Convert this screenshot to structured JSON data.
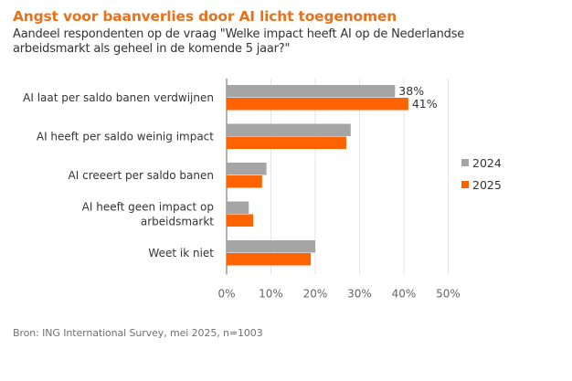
{
  "header": {
    "title": "Angst voor baanverlies door AI licht toegenomen",
    "subtitle": "Aandeel respondenten op de vraag \"Welke impact heeft AI op de Nederlandse arbeidsmarkt als geheel in de komende 5 jaar?\""
  },
  "footer": {
    "source": "Bron: ING International Survey, mei 2025, n=1003"
  },
  "colors": {
    "title": "#e8711c",
    "series_2024": "#a5a5a5",
    "series_2025": "#ff6200",
    "grid": "#e6e6e6",
    "axis": "#999999"
  },
  "chart_data": {
    "type": "bar",
    "orientation": "horizontal",
    "title": "Angst voor baanverlies door AI licht toegenomen",
    "subtitle": "Aandeel respondenten op de vraag \"Welke impact heeft AI op de Nederlandse arbeidsmarkt als geheel in de komende 5 jaar?\"",
    "categories": [
      [
        "AI laat per saldo banen verdwijnen"
      ],
      [
        "AI heeft per saldo weinig impact"
      ],
      [
        "AI creeert per saldo banen"
      ],
      [
        "AI heeft geen impact op",
        "arbeidsmarkt"
      ],
      [
        "Weet ik niet"
      ]
    ],
    "series": [
      {
        "name": "2024",
        "color": "#a5a5a5",
        "values": [
          38,
          28,
          9,
          5,
          20
        ]
      },
      {
        "name": "2025",
        "color": "#ff6200",
        "values": [
          41,
          27,
          8,
          6,
          19
        ]
      }
    ],
    "data_labels": [
      {
        "series": 0,
        "category": 0,
        "text": "38%"
      },
      {
        "series": 1,
        "category": 0,
        "text": "41%"
      }
    ],
    "xlim": [
      0,
      50
    ],
    "xticks": [
      0,
      10,
      20,
      30,
      40,
      50
    ],
    "xtick_labels": [
      "0%",
      "10%",
      "20%",
      "30%",
      "40%",
      "50%"
    ],
    "xlabel": "",
    "ylabel": "",
    "grid": true,
    "legend": {
      "entries": [
        "2024",
        "2025"
      ],
      "position": "right"
    }
  }
}
